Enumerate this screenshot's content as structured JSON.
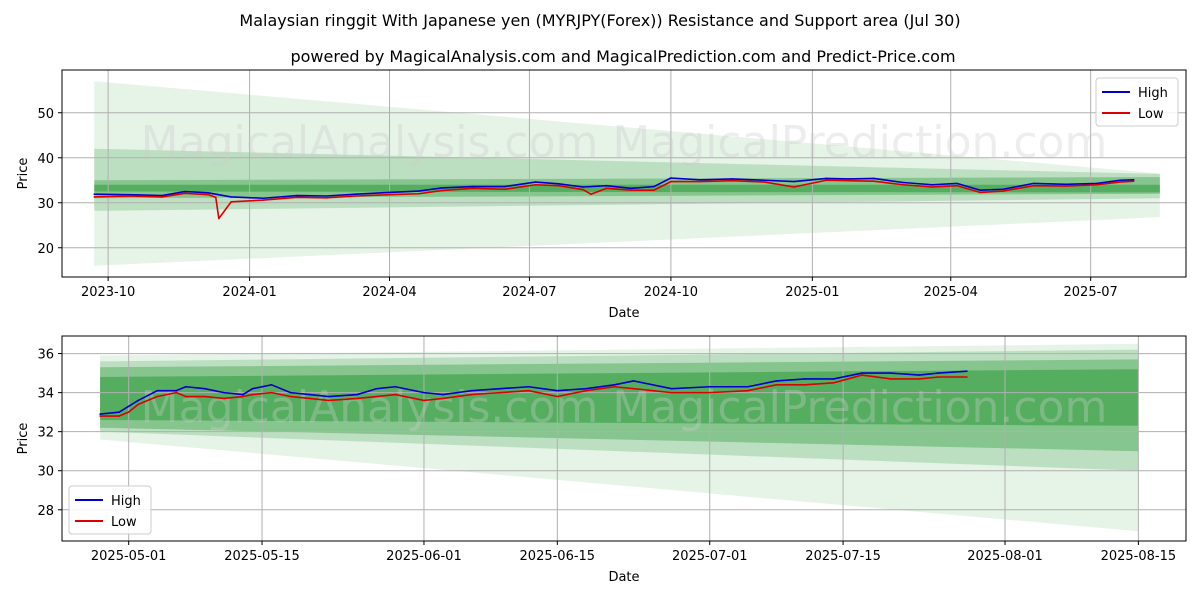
{
  "title": "Malaysian ringgit With Japanese yen (MYRJPY(Forex)) Resistance and Support area (Jul 30)",
  "subtitle": "powered by MagicalAnalysis.com and MagicalPrediction.com and Predict-Price.com",
  "watermark": "MagicalAnalysis.com    MagicalPrediction.com",
  "colors": {
    "high": "#0000cc",
    "low": "#dd0000",
    "band": "#2e9a3a",
    "grid": "#b0b0b0"
  },
  "chart_data": [
    {
      "type": "line",
      "xlabel": "Date",
      "ylabel": "Price",
      "xlim": [
        "2023-09-01",
        "2025-09-01"
      ],
      "ylim": [
        13.5,
        59.5
      ],
      "x_ticks": [
        "2023-10-01",
        "2024-01-01",
        "2024-04-01",
        "2024-07-01",
        "2024-10-01",
        "2025-01-01",
        "2025-04-01",
        "2025-07-01"
      ],
      "x_tick_labels": [
        "2023-10",
        "2024-01",
        "2024-04",
        "2024-07",
        "2024-10",
        "2025-01",
        "2025-04",
        "2025-07"
      ],
      "y_ticks": [
        20,
        30,
        40,
        50
      ],
      "grid": true,
      "legend": "top-right",
      "series": [
        {
          "name": "High",
          "x": [
            "2023-09-22",
            "2023-10-15",
            "2023-11-05",
            "2023-11-20",
            "2023-12-05",
            "2023-12-20",
            "2024-01-10",
            "2024-02-01",
            "2024-02-20",
            "2024-03-10",
            "2024-04-01",
            "2024-04-20",
            "2024-05-05",
            "2024-05-25",
            "2024-06-15",
            "2024-07-05",
            "2024-07-20",
            "2024-08-05",
            "2024-08-20",
            "2024-09-05",
            "2024-09-20",
            "2024-10-01",
            "2024-10-20",
            "2024-11-10",
            "2024-12-01",
            "2024-12-20",
            "2025-01-10",
            "2025-01-25",
            "2025-02-10",
            "2025-03-01",
            "2025-03-20",
            "2025-04-05",
            "2025-04-20",
            "2025-05-05",
            "2025-05-25",
            "2025-06-15",
            "2025-07-05",
            "2025-07-20",
            "2025-07-29"
          ],
          "values": [
            31.9,
            31.8,
            31.6,
            32.5,
            32.2,
            31.3,
            31.0,
            31.6,
            31.5,
            31.9,
            32.3,
            32.6,
            33.3,
            33.6,
            33.6,
            34.6,
            34.2,
            33.5,
            33.8,
            33.2,
            33.6,
            35.5,
            35.1,
            35.3,
            35.0,
            34.7,
            35.4,
            35.3,
            35.4,
            34.5,
            34.0,
            34.3,
            32.8,
            33.0,
            34.3,
            34.1,
            34.3,
            35.0,
            35.1
          ]
        },
        {
          "name": "Low",
          "x": [
            "2023-09-22",
            "2023-10-15",
            "2023-11-05",
            "2023-11-20",
            "2023-12-05",
            "2023-12-10",
            "2023-12-12",
            "2023-12-20",
            "2024-01-10",
            "2024-02-01",
            "2024-02-20",
            "2024-03-10",
            "2024-04-01",
            "2024-04-20",
            "2024-05-05",
            "2024-05-25",
            "2024-06-15",
            "2024-07-05",
            "2024-07-20",
            "2024-08-05",
            "2024-08-10",
            "2024-08-20",
            "2024-09-05",
            "2024-09-20",
            "2024-10-01",
            "2024-10-20",
            "2024-11-10",
            "2024-12-01",
            "2024-12-20",
            "2025-01-10",
            "2025-01-25",
            "2025-02-10",
            "2025-03-01",
            "2025-03-20",
            "2025-04-05",
            "2025-04-20",
            "2025-05-05",
            "2025-05-25",
            "2025-06-15",
            "2025-07-05",
            "2025-07-20",
            "2025-07-29"
          ],
          "values": [
            31.3,
            31.5,
            31.3,
            32.1,
            31.8,
            31.2,
            26.5,
            30.2,
            30.6,
            31.2,
            31.1,
            31.5,
            31.8,
            32.0,
            32.7,
            33.2,
            33.0,
            34.0,
            33.8,
            32.9,
            31.9,
            33.2,
            32.8,
            32.8,
            34.7,
            34.7,
            34.9,
            34.6,
            33.5,
            35.0,
            34.9,
            34.8,
            34.0,
            33.5,
            33.8,
            32.3,
            32.6,
            33.8,
            33.7,
            34.0,
            34.6,
            34.8
          ]
        }
      ],
      "bands": [
        {
          "x": [
            "2023-09-22",
            "2025-08-15"
          ],
          "lower": [
            32.5,
            32.3
          ],
          "upper": [
            34.0,
            34.0
          ]
        },
        {
          "x": [
            "2023-09-22",
            "2025-08-15"
          ],
          "lower": [
            31.0,
            32.0
          ],
          "upper": [
            35.0,
            35.7
          ]
        },
        {
          "x": [
            "2023-09-22",
            "2025-08-15"
          ],
          "lower": [
            28.2,
            31.0
          ],
          "upper": [
            42.0,
            36.4
          ]
        },
        {
          "x": [
            "2023-09-22",
            "2025-08-15"
          ],
          "lower": [
            16.0,
            26.8
          ],
          "upper": [
            57.0,
            36.5
          ]
        }
      ]
    },
    {
      "type": "line",
      "xlabel": "Date",
      "ylabel": "Price",
      "xlim": [
        "2025-04-24",
        "2025-08-20"
      ],
      "ylim": [
        26.4,
        36.9
      ],
      "x_ticks": [
        "2025-05-01",
        "2025-05-15",
        "2025-06-01",
        "2025-06-15",
        "2025-07-01",
        "2025-07-15",
        "2025-08-01",
        "2025-08-15"
      ],
      "x_tick_labels": [
        "2025-05-01",
        "2025-05-15",
        "2025-06-01",
        "2025-06-15",
        "2025-07-01",
        "2025-07-15",
        "2025-08-01",
        "2025-08-15"
      ],
      "y_ticks": [
        28,
        30,
        32,
        34,
        36
      ],
      "grid": true,
      "legend": "lower-left",
      "series": [
        {
          "name": "High",
          "x": [
            "2025-04-28",
            "2025-04-30",
            "2025-05-01",
            "2025-05-02",
            "2025-05-04",
            "2025-05-06",
            "2025-05-07",
            "2025-05-09",
            "2025-05-11",
            "2025-05-13",
            "2025-05-14",
            "2025-05-16",
            "2025-05-18",
            "2025-05-20",
            "2025-05-22",
            "2025-05-25",
            "2025-05-27",
            "2025-05-29",
            "2025-06-01",
            "2025-06-03",
            "2025-06-06",
            "2025-06-09",
            "2025-06-12",
            "2025-06-15",
            "2025-06-18",
            "2025-06-21",
            "2025-06-23",
            "2025-06-27",
            "2025-07-01",
            "2025-07-05",
            "2025-07-08",
            "2025-07-11",
            "2025-07-14",
            "2025-07-17",
            "2025-07-20",
            "2025-07-23",
            "2025-07-25",
            "2025-07-28"
          ],
          "values": [
            32.9,
            33.0,
            33.3,
            33.6,
            34.1,
            34.1,
            34.3,
            34.2,
            34.0,
            33.9,
            34.2,
            34.4,
            34.0,
            33.9,
            33.8,
            33.9,
            34.2,
            34.3,
            34.0,
            33.9,
            34.1,
            34.2,
            34.3,
            34.1,
            34.2,
            34.4,
            34.6,
            34.2,
            34.3,
            34.3,
            34.6,
            34.7,
            34.7,
            35.0,
            35.0,
            34.9,
            35.0,
            35.1
          ]
        },
        {
          "name": "Low",
          "x": [
            "2025-04-28",
            "2025-04-30",
            "2025-05-01",
            "2025-05-02",
            "2025-05-04",
            "2025-05-06",
            "2025-05-07",
            "2025-05-09",
            "2025-05-11",
            "2025-05-13",
            "2025-05-14",
            "2025-05-16",
            "2025-05-18",
            "2025-05-20",
            "2025-05-22",
            "2025-05-25",
            "2025-05-27",
            "2025-05-29",
            "2025-06-01",
            "2025-06-03",
            "2025-06-06",
            "2025-06-09",
            "2025-06-12",
            "2025-06-15",
            "2025-06-18",
            "2025-06-21",
            "2025-06-23",
            "2025-06-27",
            "2025-07-01",
            "2025-07-05",
            "2025-07-08",
            "2025-07-11",
            "2025-07-14",
            "2025-07-17",
            "2025-07-20",
            "2025-07-23",
            "2025-07-25",
            "2025-07-28"
          ],
          "values": [
            32.8,
            32.8,
            33.0,
            33.4,
            33.8,
            34.0,
            33.8,
            33.8,
            33.7,
            33.8,
            33.9,
            34.0,
            33.8,
            33.7,
            33.6,
            33.7,
            33.8,
            33.9,
            33.6,
            33.7,
            33.9,
            34.0,
            34.1,
            33.8,
            34.1,
            34.3,
            34.2,
            34.0,
            34.0,
            34.1,
            34.4,
            34.4,
            34.5,
            34.9,
            34.7,
            34.7,
            34.8,
            34.8
          ]
        }
      ],
      "bands": [
        {
          "x": [
            "2025-04-28",
            "2025-08-15"
          ],
          "lower": [
            32.6,
            32.3
          ],
          "upper": [
            34.8,
            35.2
          ]
        },
        {
          "x": [
            "2025-04-28",
            "2025-08-15"
          ],
          "lower": [
            32.2,
            31.0
          ],
          "upper": [
            35.3,
            35.7
          ]
        },
        {
          "x": [
            "2025-04-28",
            "2025-08-15"
          ],
          "lower": [
            32.0,
            30.0
          ],
          "upper": [
            35.6,
            36.2
          ]
        },
        {
          "x": [
            "2025-04-28",
            "2025-08-15"
          ],
          "lower": [
            31.6,
            26.9
          ],
          "upper": [
            35.9,
            36.5
          ]
        }
      ]
    }
  ]
}
